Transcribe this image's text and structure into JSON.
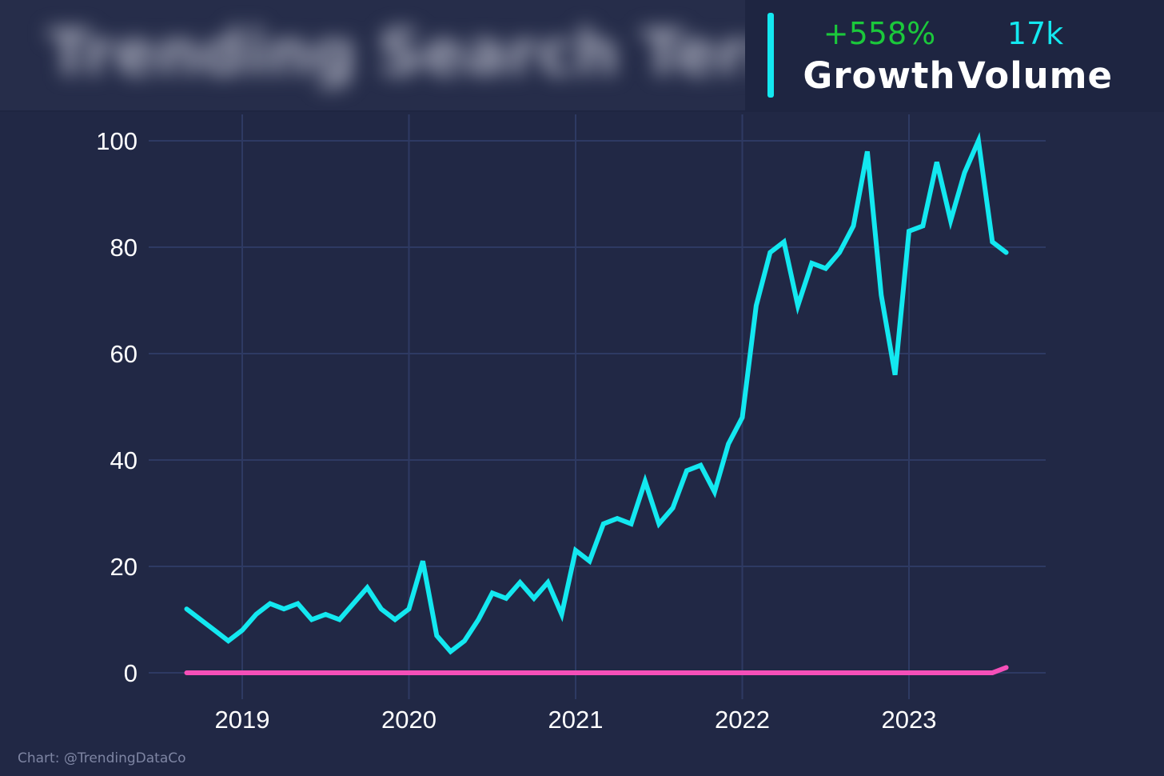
{
  "header": {
    "blurred_title": "Trending Search Term",
    "growth_value": "+558%",
    "growth_label": "Growth",
    "volume_value": "17k",
    "volume_label": "Volume"
  },
  "credit": "Chart: @TrendingDataCo",
  "colors": {
    "background": "#212845",
    "grid": "#2e3a63",
    "main_series": "#13e8f0",
    "secondary_series": "#f54fb8",
    "growth": "#1bc83b",
    "tick_text": "#ffffff"
  },
  "chart_data": {
    "type": "line",
    "x_start": "2018-09",
    "x_interval": "month",
    "xlim": [
      "2018-05",
      "2023-11"
    ],
    "ylim": [
      -5,
      105
    ],
    "x_ticks": [
      "2019",
      "2020",
      "2021",
      "2022",
      "2023"
    ],
    "y_ticks": [
      0,
      20,
      40,
      60,
      80,
      100
    ],
    "grid": true,
    "series": [
      {
        "values": [
          12,
          10,
          8,
          6,
          8,
          11,
          13,
          12,
          13,
          10,
          11,
          10,
          13,
          16,
          12,
          10,
          12,
          21,
          7,
          4,
          6,
          10,
          15,
          14,
          17,
          14,
          17,
          11,
          23,
          21,
          28,
          29,
          28,
          36,
          28,
          31,
          38,
          39,
          34,
          43,
          48,
          69,
          79,
          81,
          69,
          77,
          76,
          79,
          84,
          98,
          71,
          56,
          83,
          84,
          96,
          85,
          94,
          100,
          81,
          79
        ],
        "color": "#13e8f0"
      },
      {
        "values": [
          0,
          0,
          0,
          0,
          0,
          0,
          0,
          0,
          0,
          0,
          0,
          0,
          0,
          0,
          0,
          0,
          0,
          0,
          0,
          0,
          0,
          0,
          0,
          0,
          0,
          0,
          0,
          0,
          0,
          0,
          0,
          0,
          0,
          0,
          0,
          0,
          0,
          0,
          0,
          0,
          0,
          0,
          0,
          0,
          0,
          0,
          0,
          0,
          0,
          0,
          0,
          0,
          0,
          0,
          0,
          0,
          0,
          0,
          0,
          1
        ],
        "color": "#f54fb8"
      }
    ]
  }
}
